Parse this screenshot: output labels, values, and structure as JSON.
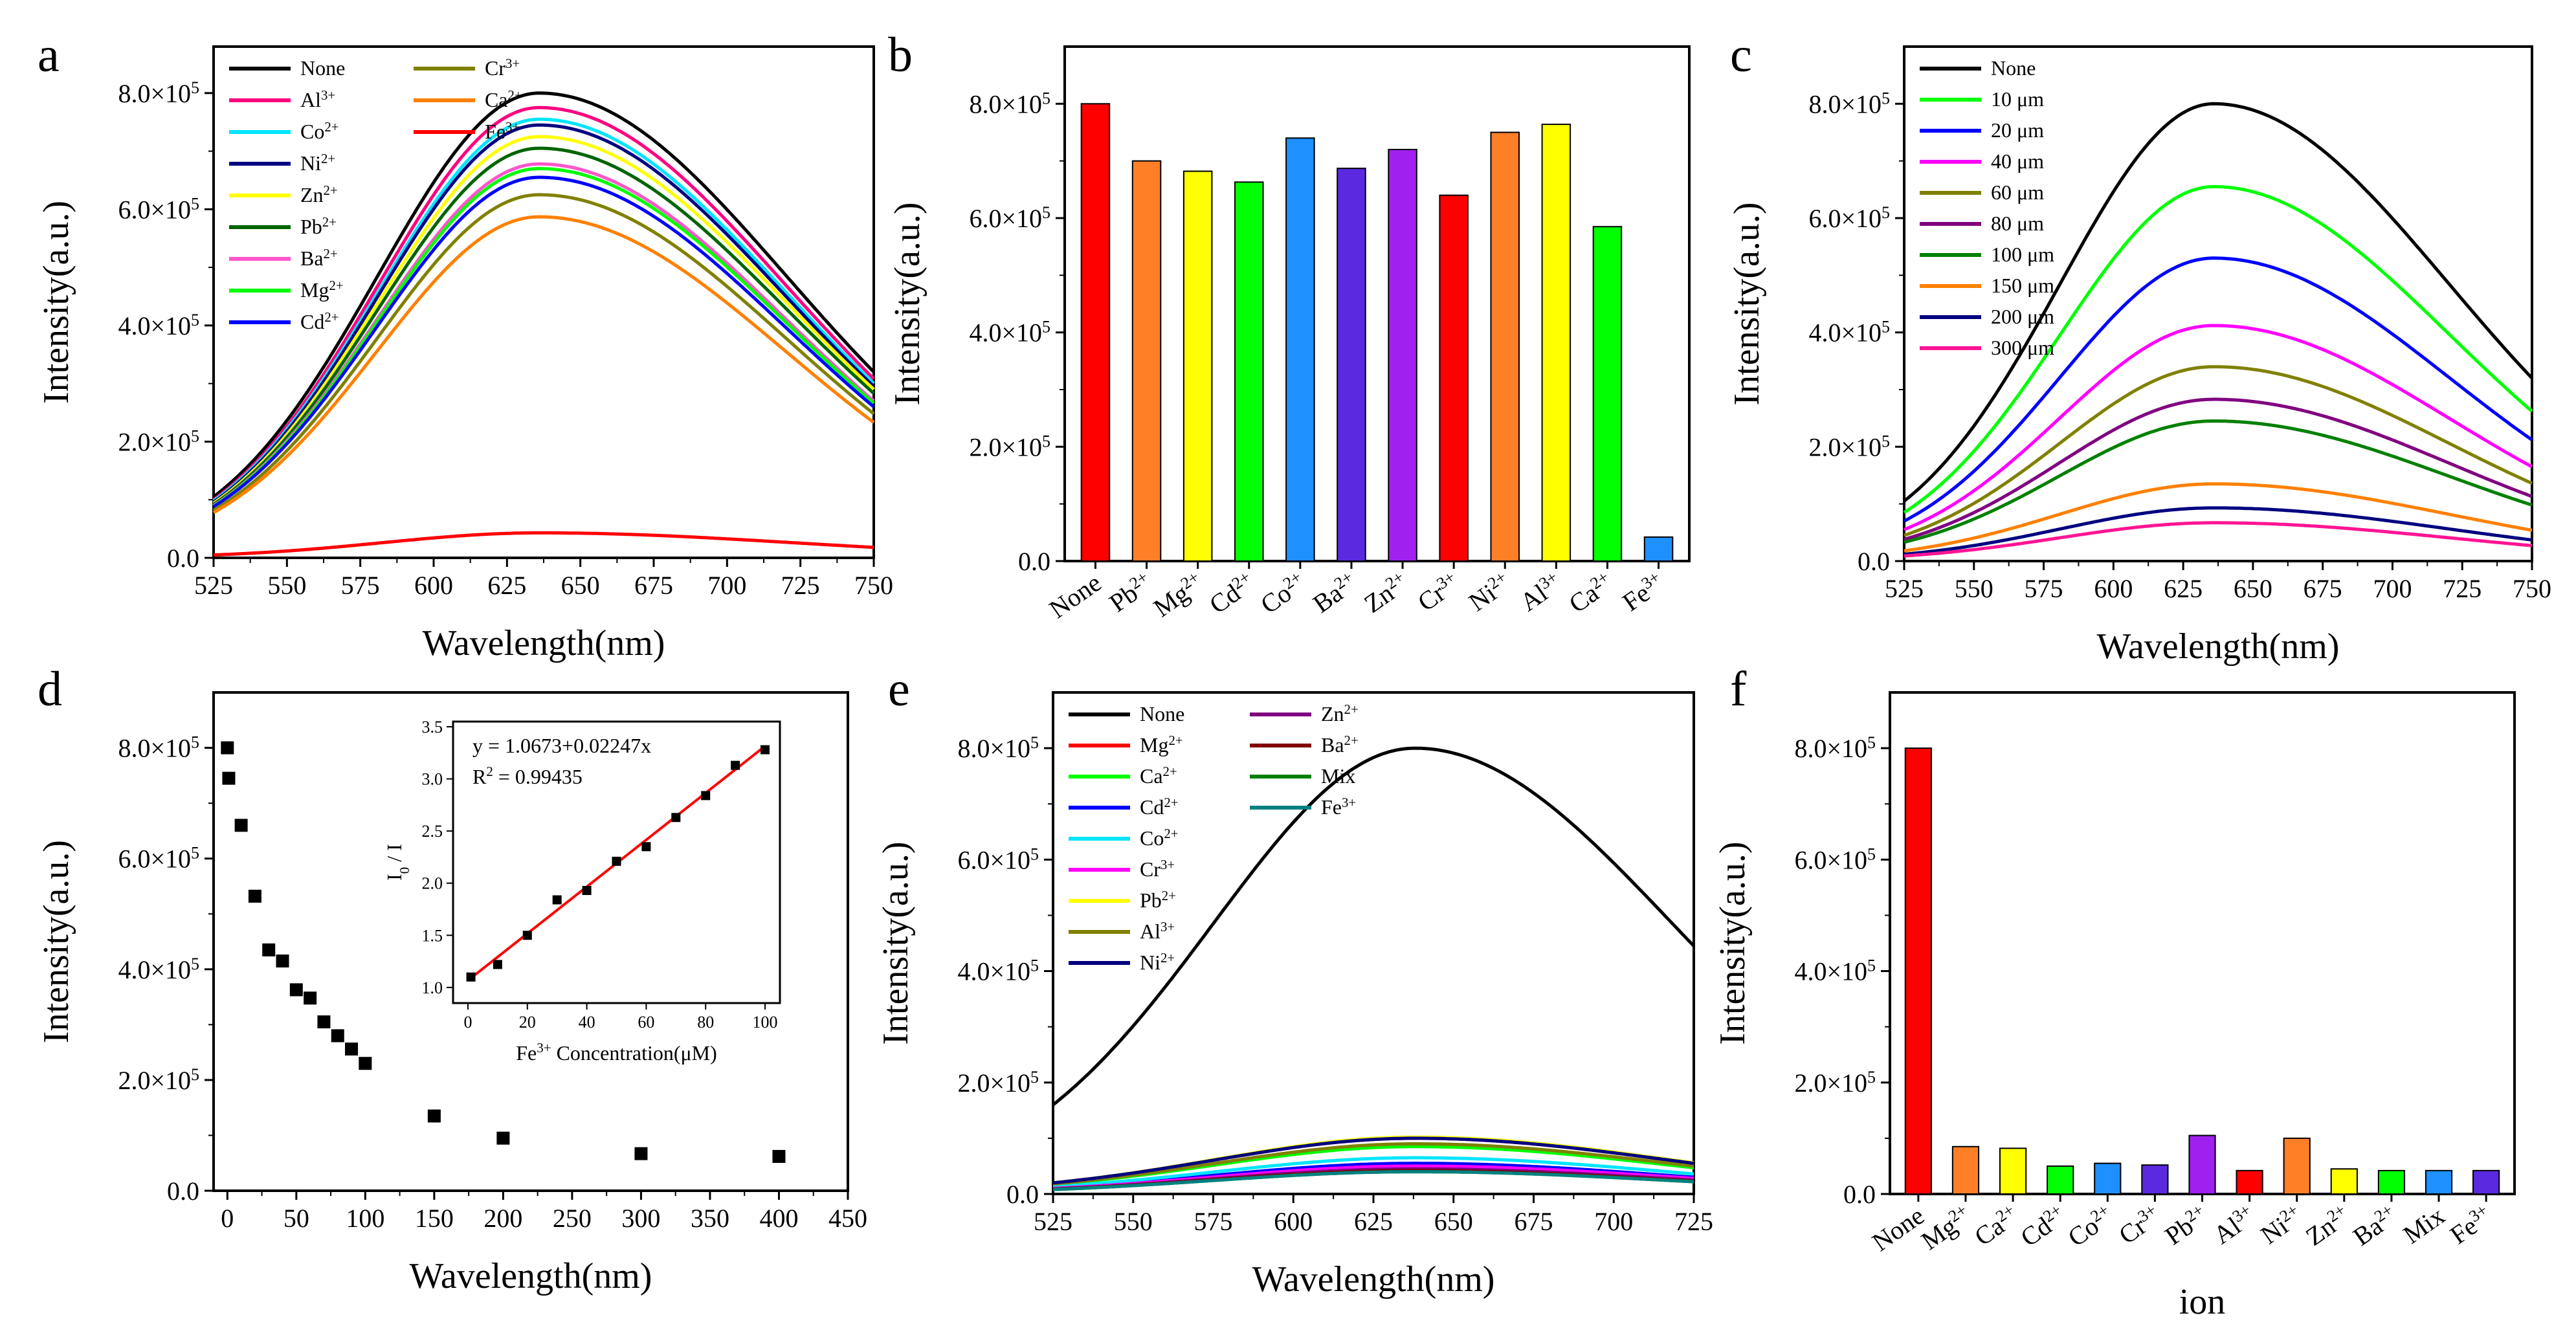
{
  "figure": {
    "panel_letters": [
      "a",
      "b",
      "c",
      "d",
      "e",
      "f"
    ]
  },
  "chart_data": [
    {
      "panel": "a",
      "type": "line",
      "xlabel": "Wavelength(nm)",
      "ylabel": "Intensity(a.u.)",
      "xlim": [
        525,
        750
      ],
      "ylim": [
        0,
        880000
      ],
      "xticks": [
        525,
        550,
        575,
        600,
        625,
        650,
        675,
        700,
        725,
        750
      ],
      "yticks": [
        0,
        200000,
        400000,
        600000,
        800000
      ],
      "peak_x": 636,
      "legend": {
        "columns": 2,
        "position": "top-left"
      },
      "series": [
        {
          "name": "None",
          "sup": "",
          "color": "#000000",
          "start": 105000,
          "peak": 800000,
          "end": 320000
        },
        {
          "name": "Al",
          "sup": "3+",
          "color": "#ff0080",
          "start": 100000,
          "peak": 775000,
          "end": 308000
        },
        {
          "name": "Co",
          "sup": "2+",
          "color": "#00e5ff",
          "start": 98000,
          "peak": 755000,
          "end": 300000
        },
        {
          "name": "Ni",
          "sup": "2+",
          "color": "#000080",
          "start": 96000,
          "peak": 745000,
          "end": 295000
        },
        {
          "name": "Zn",
          "sup": "2+",
          "color": "#ffff00",
          "start": 94000,
          "peak": 725000,
          "end": 290000
        },
        {
          "name": "Pb",
          "sup": "2+",
          "color": "#006400",
          "start": 92000,
          "peak": 705000,
          "end": 283000
        },
        {
          "name": "Ba",
          "sup": "2+",
          "color": "#ff55cc",
          "start": 90000,
          "peak": 678000,
          "end": 270000
        },
        {
          "name": "Mg",
          "sup": "2+",
          "color": "#00ff00",
          "start": 89000,
          "peak": 670000,
          "end": 266000
        },
        {
          "name": "Cd",
          "sup": "2+",
          "color": "#0000ff",
          "start": 88000,
          "peak": 655000,
          "end": 260000
        },
        {
          "name": "Cr",
          "sup": "3+",
          "color": "#808000",
          "start": 82000,
          "peak": 625000,
          "end": 248000
        },
        {
          "name": "Ca",
          "sup": "2+",
          "color": "#ff8000",
          "start": 78000,
          "peak": 587000,
          "end": 233000
        },
        {
          "name": "Fe",
          "sup": "3+",
          "color": "#ff0000",
          "start": 5000,
          "peak": 43000,
          "end": 18000
        }
      ]
    },
    {
      "panel": "b",
      "type": "bar",
      "xlabel": "",
      "ylabel": "Intensity(a.u.)",
      "ylim": [
        0,
        900000
      ],
      "yticks": [
        0,
        200000,
        400000,
        600000,
        800000
      ],
      "categories": [
        {
          "name": "None",
          "sup": ""
        },
        {
          "name": "Pb",
          "sup": "2+"
        },
        {
          "name": "Mg",
          "sup": "2+"
        },
        {
          "name": "Cd",
          "sup": "2+"
        },
        {
          "name": "Co",
          "sup": "2+"
        },
        {
          "name": "Ba",
          "sup": "2+"
        },
        {
          "name": "Zn",
          "sup": "2+"
        },
        {
          "name": "Cr",
          "sup": "3+"
        },
        {
          "name": "Ni",
          "sup": "2+"
        },
        {
          "name": "Al",
          "sup": "3+"
        },
        {
          "name": "Ca",
          "sup": "2+"
        },
        {
          "name": "Fe",
          "sup": "3+"
        }
      ],
      "values": [
        800000,
        700000,
        682000,
        663000,
        740000,
        687000,
        720000,
        640000,
        750000,
        764000,
        585000,
        42000
      ],
      "colors": [
        "#ff0000",
        "#ff7f27",
        "#ffff00",
        "#00ff00",
        "#1e90ff",
        "#5b2ae0",
        "#a020f0",
        "#ff0000",
        "#ff7f27",
        "#ffff00",
        "#00ff00",
        "#1e90ff"
      ]
    },
    {
      "panel": "c",
      "type": "line",
      "xlabel": "Wavelength(nm)",
      "ylabel": "Intensity(a.u.)",
      "xlim": [
        525,
        750
      ],
      "ylim": [
        0,
        900000
      ],
      "xticks": [
        525,
        550,
        575,
        600,
        625,
        650,
        675,
        700,
        725,
        750
      ],
      "yticks": [
        0,
        200000,
        400000,
        600000,
        800000
      ],
      "peak_x": 636,
      "legend": {
        "columns": 1,
        "position": "top-left"
      },
      "series": [
        {
          "name": "None",
          "color": "#000000",
          "start": 105000,
          "peak": 800000,
          "end": 320000
        },
        {
          "name": "10 μm",
          "color": "#00ff00",
          "start": 85000,
          "peak": 655000,
          "end": 262000
        },
        {
          "name": "20 μm",
          "color": "#0000ff",
          "start": 70000,
          "peak": 530000,
          "end": 212000
        },
        {
          "name": "40 μm",
          "color": "#ff00ff",
          "start": 55000,
          "peak": 412000,
          "end": 165000
        },
        {
          "name": "60 μm",
          "color": "#808000",
          "start": 45000,
          "peak": 340000,
          "end": 136000
        },
        {
          "name": "80 μm",
          "color": "#800080",
          "start": 38000,
          "peak": 283000,
          "end": 113000
        },
        {
          "name": "100 μm",
          "color": "#008000",
          "start": 33000,
          "peak": 245000,
          "end": 98000
        },
        {
          "name": "150 μm",
          "color": "#ff8000",
          "start": 18000,
          "peak": 135000,
          "end": 54000
        },
        {
          "name": "200 μm",
          "color": "#000080",
          "start": 12000,
          "peak": 93000,
          "end": 37000
        },
        {
          "name": "300 μm",
          "color": "#ff1493",
          "start": 9000,
          "peak": 67000,
          "end": 27000
        }
      ]
    },
    {
      "panel": "d",
      "type": "scatter",
      "xlabel": "Wavelength(nm)",
      "ylabel": "Intensity(a.u.)",
      "xlim": [
        -10,
        450
      ],
      "ylim": [
        0,
        900000
      ],
      "xticks": [
        0,
        50,
        100,
        150,
        200,
        250,
        300,
        350,
        400,
        450
      ],
      "yticks": [
        0,
        200000,
        400000,
        600000,
        800000
      ],
      "x": [
        0,
        1,
        10,
        20,
        30,
        40,
        50,
        60,
        70,
        80,
        90,
        100,
        150,
        200,
        300,
        400
      ],
      "y": [
        800000,
        745000,
        660000,
        532000,
        435000,
        415000,
        363000,
        348000,
        305000,
        280000,
        256000,
        230000,
        135000,
        95000,
        67000,
        62000
      ],
      "inset": {
        "type": "scatter+fit",
        "xlabel": "Fe",
        "xlabel_sup": "3+",
        "xlabel_rest": " Concentration(μM)",
        "ylabel": "I",
        "ylabel_sub": "0",
        "ylabel_rest": " / I",
        "xlim": [
          -5,
          105
        ],
        "ylim": [
          0.85,
          3.55
        ],
        "xticks": [
          0,
          20,
          40,
          60,
          80,
          100
        ],
        "yticks": [
          1.0,
          1.5,
          2.0,
          2.5,
          3.0,
          3.5
        ],
        "x": [
          1,
          10,
          20,
          30,
          40,
          50,
          60,
          70,
          80,
          90,
          100
        ],
        "y": [
          1.1,
          1.22,
          1.5,
          1.84,
          1.93,
          2.21,
          2.35,
          2.63,
          2.84,
          3.13,
          3.28
        ],
        "fit": {
          "intercept": 1.0673,
          "slope": 0.02247,
          "color": "#ff0000"
        },
        "equation": "y = 1.0673+0.02247x",
        "r2_label": "R",
        "r2_sup": "2",
        "r2_value": " = 0.99435"
      }
    },
    {
      "panel": "e",
      "type": "line",
      "xlabel": "Wavelength(nm)",
      "ylabel": "Intensity(a.u.)",
      "xlim": [
        525,
        725
      ],
      "ylim": [
        0,
        900000
      ],
      "xticks": [
        525,
        550,
        575,
        600,
        625,
        650,
        675,
        700,
        725
      ],
      "yticks": [
        0,
        200000,
        400000,
        600000,
        800000
      ],
      "peak_x": 638,
      "legend": {
        "columns": 2,
        "position": "top-left"
      },
      "series": [
        {
          "name": "None",
          "sup": "",
          "color": "#000000",
          "start": 160000,
          "peak": 800000,
          "end": 445000
        },
        {
          "name": "Mg",
          "sup": "2+",
          "color": "#ff0000",
          "start": 20000,
          "peak": 100000,
          "end": 55000
        },
        {
          "name": "Ca",
          "sup": "2+",
          "color": "#00ff00",
          "start": 17000,
          "peak": 85000,
          "end": 47000
        },
        {
          "name": "Cd",
          "sup": "2+",
          "color": "#0000ff",
          "start": 11000,
          "peak": 55000,
          "end": 30000
        },
        {
          "name": "Co",
          "sup": "2+",
          "color": "#00e5ff",
          "start": 13000,
          "peak": 65000,
          "end": 36000
        },
        {
          "name": "Cr",
          "sup": "3+",
          "color": "#ff00ff",
          "start": 10000,
          "peak": 50000,
          "end": 28000
        },
        {
          "name": "Pb",
          "sup": "2+",
          "color": "#ffff00",
          "start": 20000,
          "peak": 102000,
          "end": 56000
        },
        {
          "name": "Al",
          "sup": "3+",
          "color": "#808000",
          "start": 18000,
          "peak": 90000,
          "end": 50000
        },
        {
          "name": "Ni",
          "sup": "2+",
          "color": "#000080",
          "start": 20000,
          "peak": 100000,
          "end": 55000
        },
        {
          "name": "Zn",
          "sup": "2+",
          "color": "#800080",
          "start": 9000,
          "peak": 45000,
          "end": 25000
        },
        {
          "name": "Ba",
          "sup": "2+",
          "color": "#800000",
          "start": 8500,
          "peak": 42000,
          "end": 23000
        },
        {
          "name": "Mix",
          "sup": "",
          "color": "#008000",
          "start": 8000,
          "peak": 40000,
          "end": 22000
        },
        {
          "name": "Fe",
          "sup": "3+",
          "color": "#008080",
          "start": 8000,
          "peak": 40000,
          "end": 22000
        }
      ]
    },
    {
      "panel": "f",
      "type": "bar",
      "xlabel": "ion",
      "ylabel": "Intensity(a.u.)",
      "ylim": [
        0,
        900000
      ],
      "yticks": [
        0,
        200000,
        400000,
        600000,
        800000
      ],
      "categories": [
        {
          "name": "None",
          "sup": ""
        },
        {
          "name": "Mg",
          "sup": "2+"
        },
        {
          "name": "Ca",
          "sup": "2+"
        },
        {
          "name": "Cd",
          "sup": "2+"
        },
        {
          "name": "Co",
          "sup": "2+"
        },
        {
          "name": "Cr",
          "sup": "3+"
        },
        {
          "name": "Pb",
          "sup": "2+"
        },
        {
          "name": "Al",
          "sup": "3+"
        },
        {
          "name": "Ni",
          "sup": "2+"
        },
        {
          "name": "Zn",
          "sup": "2+"
        },
        {
          "name": "Ba",
          "sup": "2+"
        },
        {
          "name": "Mix",
          "sup": ""
        },
        {
          "name": "Fe",
          "sup": "3+"
        }
      ],
      "values": [
        800000,
        85000,
        82000,
        50000,
        55000,
        52000,
        105000,
        42000,
        100000,
        45000,
        42000,
        42000,
        42000
      ],
      "colors": [
        "#ff0000",
        "#ff7f27",
        "#ffff00",
        "#00ff00",
        "#1e90ff",
        "#5b2ae0",
        "#a020f0",
        "#ff0000",
        "#ff7f27",
        "#ffff00",
        "#00ff00",
        "#1e90ff",
        "#5b2ae0"
      ]
    }
  ]
}
